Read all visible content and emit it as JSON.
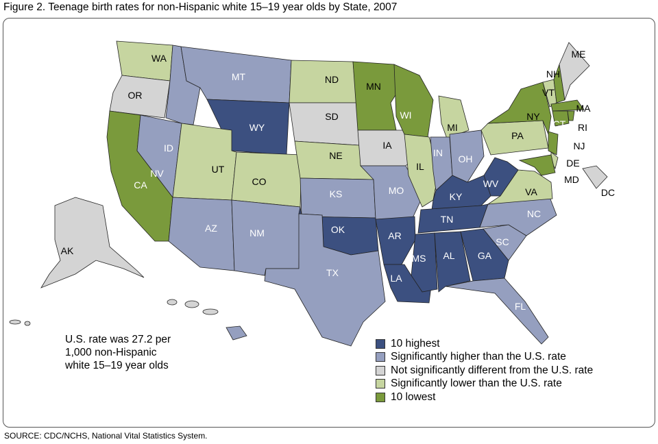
{
  "title": "Figure 2. Teenage birth rates for non-Hispanic white 15–19 year olds by State, 2007",
  "note": [
    "U.S. rate was 27.2 per",
    "1,000 non-Hispanic",
    "white 15–19 year olds"
  ],
  "source": "SOURCE: CDC/NCHS, National Vital Statistics System.",
  "legend": [
    {
      "key": "highest10",
      "label": "10 highest",
      "color": "#3c5080"
    },
    {
      "key": "higher",
      "label": "Significantly higher than the U.S. rate",
      "color": "#959fbf"
    },
    {
      "key": "nodiff",
      "label": "Not significantly different from the U.S. rate",
      "color": "#d4d4d4"
    },
    {
      "key": "lower",
      "label": "Significantly lower than the U.S. rate",
      "color": "#c6d5a0"
    },
    {
      "key": "lowest10",
      "label": "10 lowest",
      "color": "#7a9a3c"
    }
  ],
  "states": {
    "WA": "lower",
    "OR": "nodiff",
    "CA": "lowest10",
    "NV": "higher",
    "ID": "higher",
    "MT": "higher",
    "WY": "highest10",
    "UT": "lower",
    "CO": "lower",
    "AZ": "higher",
    "NM": "higher",
    "ND": "lower",
    "SD": "nodiff",
    "NE": "lower",
    "KS": "higher",
    "OK": "highest10",
    "TX": "higher",
    "MN": "lowest10",
    "IA": "nodiff",
    "MO": "higher",
    "AR": "highest10",
    "LA": "highest10",
    "WI": "lowest10",
    "IL": "lower",
    "MI": "lower",
    "IN": "higher",
    "OH": "higher",
    "KY": "highest10",
    "TN": "highest10",
    "MS": "highest10",
    "AL": "highest10",
    "GA": "highest10",
    "FL": "higher",
    "SC": "higher",
    "NC": "higher",
    "VA": "lower",
    "WV": "highest10",
    "PA": "lower",
    "NY": "lowest10",
    "VT": "lower",
    "NH": "lowest10",
    "ME": "nodiff",
    "MA": "lowest10",
    "CT": "lowest10",
    "RI": "lowest10",
    "NJ": "lowest10",
    "DE": "lower",
    "MD": "lowest10",
    "DC": "nodiff",
    "AK": "nodiff",
    "HI": "higher"
  }
}
